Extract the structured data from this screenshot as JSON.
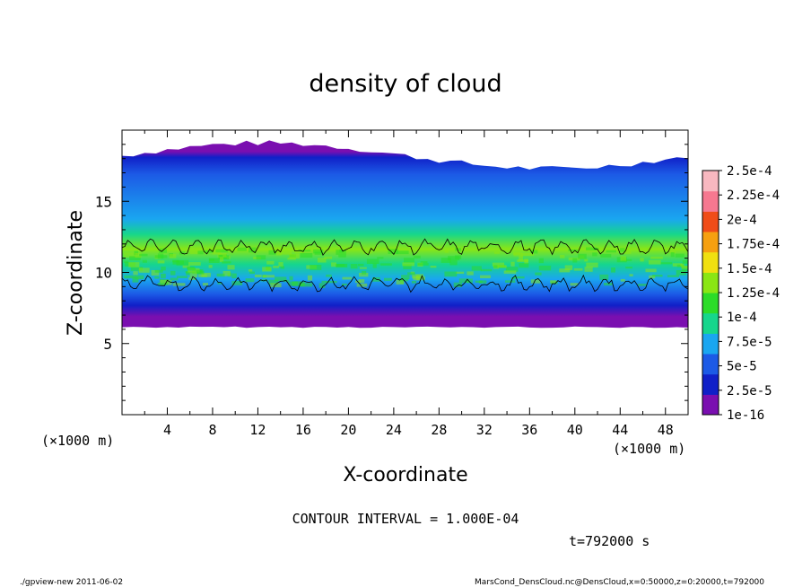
{
  "chart_data": {
    "type": "heatmap",
    "title": "density of cloud",
    "xlabel": "X-coordinate",
    "ylabel": "Z-coordinate",
    "x_unit": "(×1000 m)",
    "y_unit": "(×1000 m)",
    "xlim": [
      0,
      50
    ],
    "ylim": [
      0,
      20
    ],
    "x_ticks": [
      "4",
      "8",
      "12",
      "16",
      "20",
      "24",
      "28",
      "32",
      "36",
      "40",
      "44",
      "48"
    ],
    "x_tick_values": [
      4,
      8,
      12,
      16,
      20,
      24,
      28,
      32,
      36,
      40,
      44,
      48
    ],
    "y_ticks": [
      "5",
      "10",
      "15"
    ],
    "y_tick_values": [
      5,
      10,
      15
    ],
    "colorbar": {
      "labels": [
        "1e-16",
        "2.5e-5",
        "5e-5",
        "7.5e-5",
        "1e-4",
        "1.25e-4",
        "1.5e-4",
        "1.75e-4",
        "2e-4",
        "2.25e-4",
        "2.5e-4"
      ],
      "colors": [
        "#7a0fb0",
        "#1020c8",
        "#1c5ae6",
        "#1aa6f0",
        "#16d68c",
        "#2cdc28",
        "#8ae614",
        "#f0e010",
        "#f6a010",
        "#f04c18",
        "#f67890",
        "#f8b8c0"
      ]
    },
    "cloud_layer": {
      "bottom_z": 6.2,
      "top_z": 18.0,
      "max_density_z": 10.5,
      "max_density_value": 0.00015
    },
    "contour_interval_text": "CONTOUR INTERVAL = 1.000E-04",
    "time_text": "t=792000 s"
  },
  "footer": {
    "left": "./gpview-new  2011-06-02",
    "right": "MarsCond_DensCloud.nc@DensCloud,x=0:50000,z=0:20000,t=792000"
  }
}
